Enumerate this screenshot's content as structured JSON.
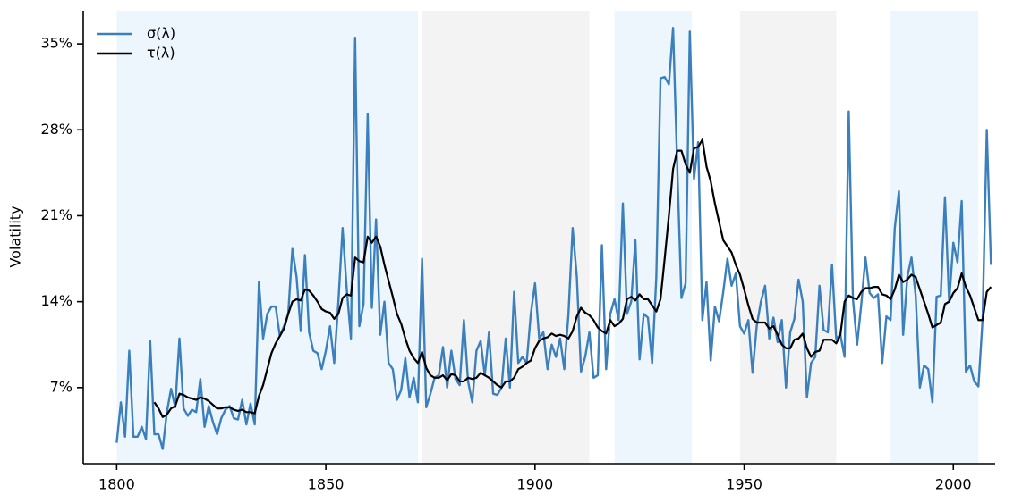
{
  "chart_data": {
    "type": "line",
    "y_label": "Volatility",
    "legend": "upper left",
    "xlim": [
      1792,
      2010
    ],
    "ylim": [
      0.8,
      37.7
    ],
    "xticks": [
      1800,
      1850,
      1900,
      1950,
      2000
    ],
    "yticks": [
      {
        "value": 7,
        "label": "7%"
      },
      {
        "value": 14,
        "label": "14%"
      },
      {
        "value": 21,
        "label": "21%"
      },
      {
        "value": 28,
        "label": "28%"
      },
      {
        "value": 35,
        "label": "35%"
      }
    ],
    "regions": [
      {
        "start": 1800,
        "end": 1872,
        "color": "#eef6fd"
      },
      {
        "start": 1873,
        "end": 1913,
        "color": "#f3f3f3"
      },
      {
        "start": 1919,
        "end": 1937.5,
        "color": "#eef6fd"
      },
      {
        "start": 1949,
        "end": 1972,
        "color": "#f3f3f3"
      },
      {
        "start": 1985,
        "end": 2006,
        "color": "#eef6fd"
      }
    ],
    "x": [
      1800,
      1801,
      1802,
      1803,
      1804,
      1805,
      1806,
      1807,
      1808,
      1809,
      1810,
      1811,
      1812,
      1813,
      1814,
      1815,
      1816,
      1817,
      1818,
      1819,
      1820,
      1821,
      1822,
      1823,
      1824,
      1825,
      1826,
      1827,
      1828,
      1829,
      1830,
      1831,
      1832,
      1833,
      1834,
      1835,
      1836,
      1837,
      1838,
      1839,
      1840,
      1841,
      1842,
      1843,
      1844,
      1845,
      1846,
      1847,
      1848,
      1849,
      1850,
      1851,
      1852,
      1853,
      1854,
      1855,
      1856,
      1857,
      1858,
      1859,
      1860,
      1861,
      1862,
      1863,
      1864,
      1865,
      1866,
      1867,
      1868,
      1869,
      1870,
      1871,
      1872,
      1873,
      1874,
      1875,
      1876,
      1877,
      1878,
      1879,
      1880,
      1881,
      1882,
      1883,
      1884,
      1885,
      1886,
      1887,
      1888,
      1889,
      1890,
      1891,
      1892,
      1893,
      1894,
      1895,
      1896,
      1897,
      1898,
      1899,
      1900,
      1901,
      1902,
      1903,
      1904,
      1905,
      1906,
      1907,
      1908,
      1909,
      1910,
      1911,
      1912,
      1913,
      1914,
      1915,
      1916,
      1917,
      1918,
      1919,
      1920,
      1921,
      1922,
      1923,
      1924,
      1925,
      1926,
      1927,
      1928,
      1929,
      1930,
      1931,
      1932,
      1933,
      1934,
      1935,
      1936,
      1937,
      1938,
      1939,
      1940,
      1941,
      1942,
      1943,
      1944,
      1945,
      1946,
      1947,
      1948,
      1949,
      1950,
      1951,
      1952,
      1953,
      1954,
      1955,
      1956,
      1957,
      1958,
      1959,
      1960,
      1961,
      1962,
      1963,
      1964,
      1965,
      1966,
      1967,
      1968,
      1969,
      1970,
      1971,
      1972,
      1973,
      1974,
      1975,
      1976,
      1977,
      1978,
      1979,
      1980,
      1981,
      1982,
      1983,
      1984,
      1985,
      1986,
      1987,
      1988,
      1989,
      1990,
      1991,
      1992,
      1993,
      1994,
      1995,
      1996,
      1997,
      1998,
      1999,
      2000,
      2001,
      2002,
      2003,
      2004,
      2005,
      2006,
      2007,
      2008,
      2009
    ],
    "series": [
      {
        "name": "σ(λ)",
        "color": "#3b80bd",
        "values": [
          2.5,
          5.8,
          3.0,
          10.0,
          3.0,
          3.0,
          3.8,
          2.8,
          10.8,
          3.2,
          3.2,
          2.0,
          5.0,
          6.9,
          5.4,
          11.0,
          5.3,
          4.7,
          5.2,
          5.0,
          7.7,
          3.8,
          5.5,
          4.2,
          3.2,
          4.5,
          5.2,
          5.5,
          4.5,
          4.4,
          6.0,
          4.0,
          5.7,
          4.0,
          15.6,
          11.0,
          13.0,
          13.6,
          13.6,
          11.2,
          12.0,
          13.0,
          18.3,
          16.0,
          11.6,
          17.8,
          11.5,
          10.0,
          9.8,
          8.5,
          10.0,
          12.0,
          9.0,
          14.0,
          20.0,
          15.0,
          11.0,
          35.5,
          12.0,
          13.8,
          29.3,
          13.5,
          20.7,
          11.3,
          14.0,
          9.0,
          8.5,
          6.0,
          6.8,
          9.4,
          6.2,
          7.8,
          5.8,
          17.5,
          5.4,
          6.5,
          7.8,
          8.0,
          10.3,
          7.0,
          10.0,
          7.7,
          7.2,
          12.5,
          7.5,
          5.8,
          10.0,
          10.8,
          8.0,
          11.5,
          6.5,
          6.4,
          7.0,
          11.0,
          7.0,
          14.8,
          9.0,
          9.5,
          9.0,
          13.0,
          15.5,
          11.0,
          11.5,
          8.5,
          10.5,
          9.5,
          11.0,
          8.5,
          13.0,
          20.0,
          16.0,
          8.3,
          9.5,
          11.5,
          7.8,
          8.0,
          18.6,
          8.5,
          13.0,
          14.2,
          12.5,
          22.0,
          13.0,
          14.0,
          19.0,
          9.3,
          13.0,
          12.7,
          9.0,
          16.0,
          32.2,
          32.3,
          31.7,
          36.3,
          25.0,
          14.3,
          15.5,
          36.0,
          24.0,
          27.0,
          12.5,
          15.6,
          9.2,
          13.6,
          12.4,
          14.8,
          17.5,
          15.3,
          16.3,
          12.0,
          11.4,
          12.5,
          8.2,
          12.0,
          14.0,
          15.3,
          11.0,
          12.7,
          10.7,
          12.5,
          7.0,
          11.5,
          12.6,
          15.8,
          14.0,
          6.2,
          9.0,
          9.5,
          15.3,
          11.7,
          11.5,
          17.0,
          11.0,
          11.3,
          9.5,
          29.5,
          14.2,
          10.5,
          13.8,
          17.6,
          14.7,
          14.3,
          14.6,
          9.0,
          12.8,
          12.5,
          20.0,
          23.0,
          11.3,
          16.0,
          17.6,
          14.5,
          7.0,
          8.8,
          8.5,
          5.8,
          14.4,
          14.5,
          22.5,
          14.0,
          18.8,
          17.2,
          22.2,
          8.3,
          8.8,
          7.5,
          7.1,
          12.6,
          28.0,
          17.0
        ]
      },
      {
        "name": "τ(λ)",
        "color": "#000000",
        "values": [
          null,
          null,
          null,
          null,
          null,
          null,
          null,
          null,
          null,
          5.8,
          5.3,
          4.6,
          4.8,
          5.3,
          5.5,
          6.5,
          6.4,
          6.2,
          6.1,
          6.0,
          6.2,
          6.1,
          5.9,
          5.6,
          5.3,
          5.3,
          5.4,
          5.4,
          5.2,
          5.1,
          5.2,
          5.0,
          5.0,
          4.9,
          6.3,
          7.2,
          8.5,
          9.8,
          10.6,
          11.2,
          11.8,
          13.0,
          14.0,
          14.2,
          14.1,
          15.0,
          14.9,
          14.5,
          14.0,
          13.4,
          13.2,
          13.1,
          12.6,
          13.0,
          14.3,
          14.6,
          14.5,
          17.6,
          17.3,
          17.2,
          19.3,
          18.8,
          19.3,
          18.5,
          17.0,
          15.7,
          14.4,
          13.0,
          12.2,
          11.0,
          10.0,
          9.4,
          9.0,
          9.9,
          8.6,
          8.0,
          7.8,
          7.8,
          8.0,
          7.6,
          8.1,
          8.0,
          7.5,
          7.5,
          7.8,
          7.7,
          7.8,
          8.2,
          8.0,
          7.8,
          7.5,
          7.2,
          7.0,
          7.5,
          7.5,
          7.8,
          8.5,
          8.7,
          9.0,
          9.2,
          10.2,
          10.8,
          11.0,
          11.1,
          11.4,
          11.2,
          11.3,
          11.2,
          11.0,
          11.6,
          12.8,
          13.5,
          13.1,
          12.9,
          12.5,
          11.9,
          11.6,
          11.4,
          12.5,
          12.0,
          12.2,
          12.6,
          14.2,
          14.4,
          14.1,
          14.6,
          14.2,
          14.2,
          13.7,
          13.2,
          14.2,
          17.5,
          21.0,
          24.8,
          26.3,
          26.3,
          25.2,
          24.5,
          26.5,
          26.6,
          27.2,
          25.0,
          23.8,
          22.0,
          20.5,
          19.0,
          18.5,
          18.0,
          17.0,
          16.2,
          15.0,
          13.7,
          12.6,
          12.3,
          12.3,
          12.3,
          11.8,
          12.0,
          11.3,
          10.5,
          10.2,
          10.2,
          10.9,
          11.0,
          11.4,
          10.2,
          9.5,
          9.9,
          10.0,
          10.9,
          10.9,
          10.9,
          10.6,
          11.3,
          14.0,
          14.5,
          14.3,
          14.2,
          14.8,
          15.1,
          15.1,
          15.2,
          15.2,
          14.6,
          14.5,
          14.2,
          15.0,
          16.2,
          15.6,
          15.8,
          16.2,
          16.0,
          15.0,
          14.0,
          13.0,
          11.9,
          12.1,
          12.3,
          13.8,
          14.0,
          14.7,
          15.1,
          16.3,
          15.2,
          14.5,
          13.5,
          12.5,
          12.5,
          14.8,
          15.2
        ]
      }
    ]
  }
}
